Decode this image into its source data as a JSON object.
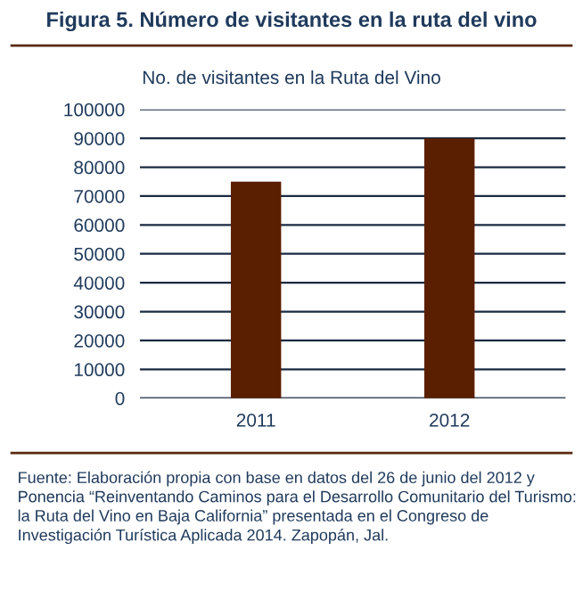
{
  "chart_data": {
    "type": "bar",
    "title": "Figura 5. Número de visitantes en la ruta del vino",
    "subtitle": "No. de visitantes en la Ruta del Vino",
    "categories": [
      "2011",
      "2012"
    ],
    "values": [
      75000,
      90000
    ],
    "color": "#5a1f00",
    "ylim": [
      0,
      100000
    ],
    "yticks": [
      0,
      10000,
      20000,
      30000,
      40000,
      50000,
      60000,
      70000,
      80000,
      90000,
      100000
    ],
    "grid": "y",
    "annotations": [
      "Fuente: Elaboración propia con base en datos del 26 de junio del 2012 y Ponencia “Reinventando Caminos para el Desarrollo Comunitario del Turismo: la Ruta del Vino en Baja California” presentada en el Congreso de Investigación Turística Aplicada 2014. Zapopán, Jal."
    ]
  }
}
